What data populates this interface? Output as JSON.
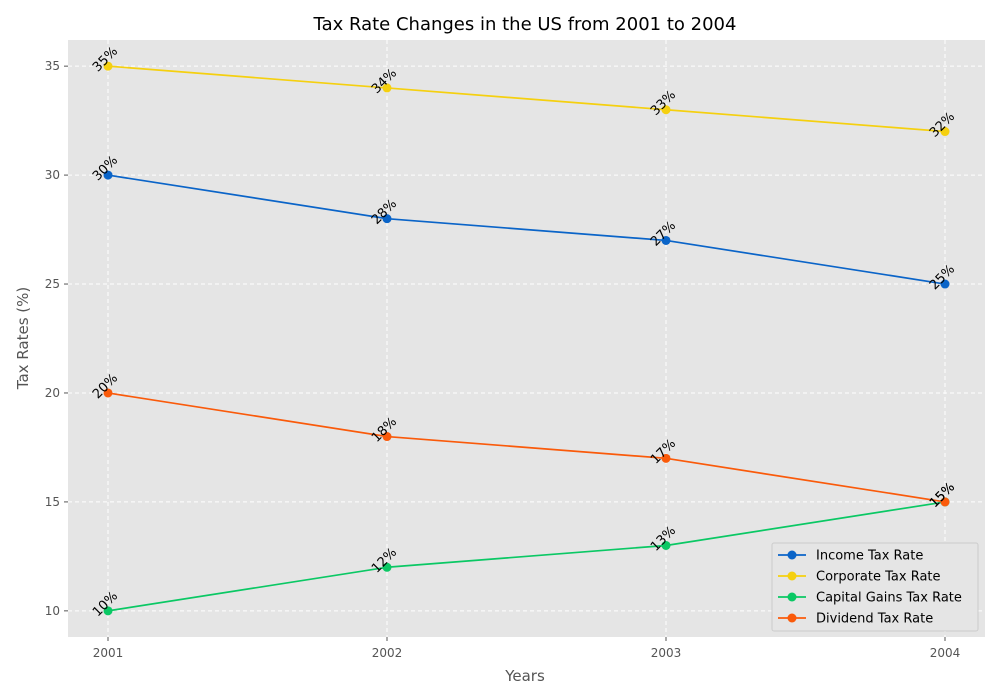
{
  "chart_data": {
    "type": "line",
    "title": "Tax Rate Changes in the US from 2001 to 2004",
    "xlabel": "Years",
    "ylabel": "Tax Rates (%)",
    "x": [
      "2001",
      "2002",
      "2003",
      "2004"
    ],
    "ylim": [
      8.8,
      36.2
    ],
    "yticks": [
      10,
      15,
      20,
      25,
      30,
      35
    ],
    "grid": true,
    "legend_position": "lower-right",
    "value_suffix": "%",
    "series": [
      {
        "name": "Income Tax Rate",
        "color": "#0a64c8",
        "values": [
          30,
          28,
          27,
          25
        ]
      },
      {
        "name": "Corporate Tax Rate",
        "color": "#f5d00f",
        "values": [
          35,
          34,
          33,
          32
        ]
      },
      {
        "name": "Capital Gains Tax Rate",
        "color": "#0ac864",
        "values": [
          10,
          12,
          13,
          15
        ]
      },
      {
        "name": "Dividend Tax Rate",
        "color": "#fa5a0a",
        "values": [
          20,
          18,
          17,
          15
        ]
      }
    ]
  }
}
